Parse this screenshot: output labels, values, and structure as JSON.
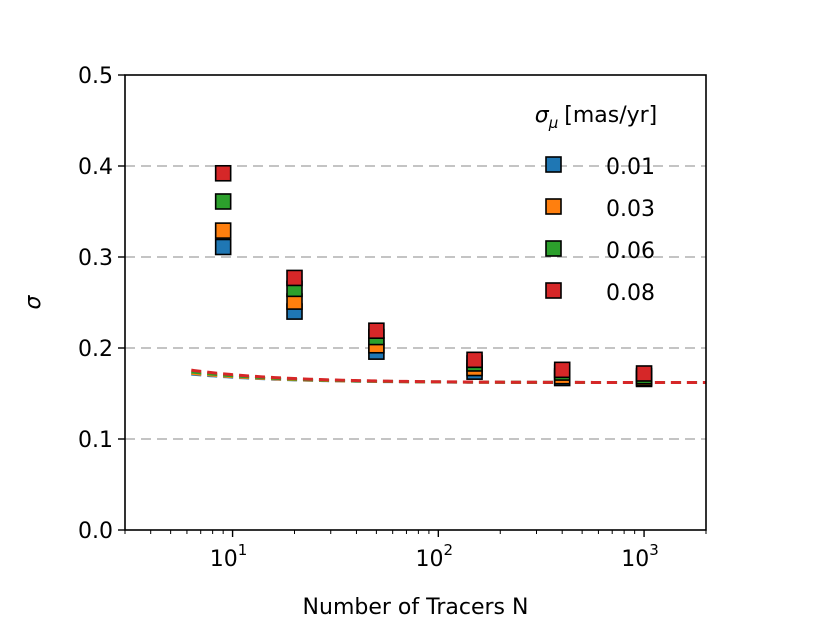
{
  "chart_data": {
    "type": "scatter",
    "xscale": "log",
    "xlabel": "Number of Tracers N",
    "ylabel": "σ",
    "xlim": [
      3,
      2000
    ],
    "ylim": [
      0.0,
      0.5
    ],
    "yticks": [
      "0.0",
      "0.1",
      "0.2",
      "0.3",
      "0.4",
      "0.5"
    ],
    "xticks": [
      {
        "value": 10,
        "base": "10",
        "exp": "1"
      },
      {
        "value": 100,
        "base": "10",
        "exp": "2"
      },
      {
        "value": 1000,
        "base": "10",
        "exp": "3"
      }
    ],
    "grid": "horizontal dashed",
    "legend": {
      "title_symbol": "σ",
      "title_sub": "μ",
      "title_text": "[mas/yr]",
      "placement": "top-right"
    },
    "series": [
      {
        "name": "0.01",
        "color": "#1f77b4",
        "points": [
          [
            9,
            0.311
          ],
          [
            20,
            0.24
          ],
          [
            50,
            0.196
          ],
          [
            150,
            0.174
          ],
          [
            400,
            0.167
          ],
          [
            1000,
            0.166
          ]
        ],
        "fit": {
          "a": 0.162,
          "b": 1.96
        }
      },
      {
        "name": "0.03",
        "color": "#ff7f0e",
        "points": [
          [
            9,
            0.329
          ],
          [
            20,
            0.251
          ],
          [
            50,
            0.203
          ],
          [
            150,
            0.178
          ],
          [
            400,
            0.169
          ],
          [
            1000,
            0.167
          ]
        ],
        "fit": {
          "a": 0.162,
          "b": 2.15
        }
      },
      {
        "name": "0.06",
        "color": "#2ca02c",
        "points": [
          [
            9,
            0.361
          ],
          [
            20,
            0.265
          ],
          [
            50,
            0.212
          ],
          [
            150,
            0.183
          ],
          [
            400,
            0.173
          ],
          [
            1000,
            0.169
          ]
        ],
        "fit": {
          "a": 0.162,
          "b": 2.47
        }
      },
      {
        "name": "0.08",
        "color": "#d62728",
        "points": [
          [
            9,
            0.392
          ],
          [
            20,
            0.277
          ],
          [
            50,
            0.219
          ],
          [
            150,
            0.187
          ],
          [
            400,
            0.176
          ],
          [
            1000,
            0.172
          ]
        ],
        "fit": {
          "a": 0.162,
          "b": 2.9
        }
      }
    ]
  }
}
